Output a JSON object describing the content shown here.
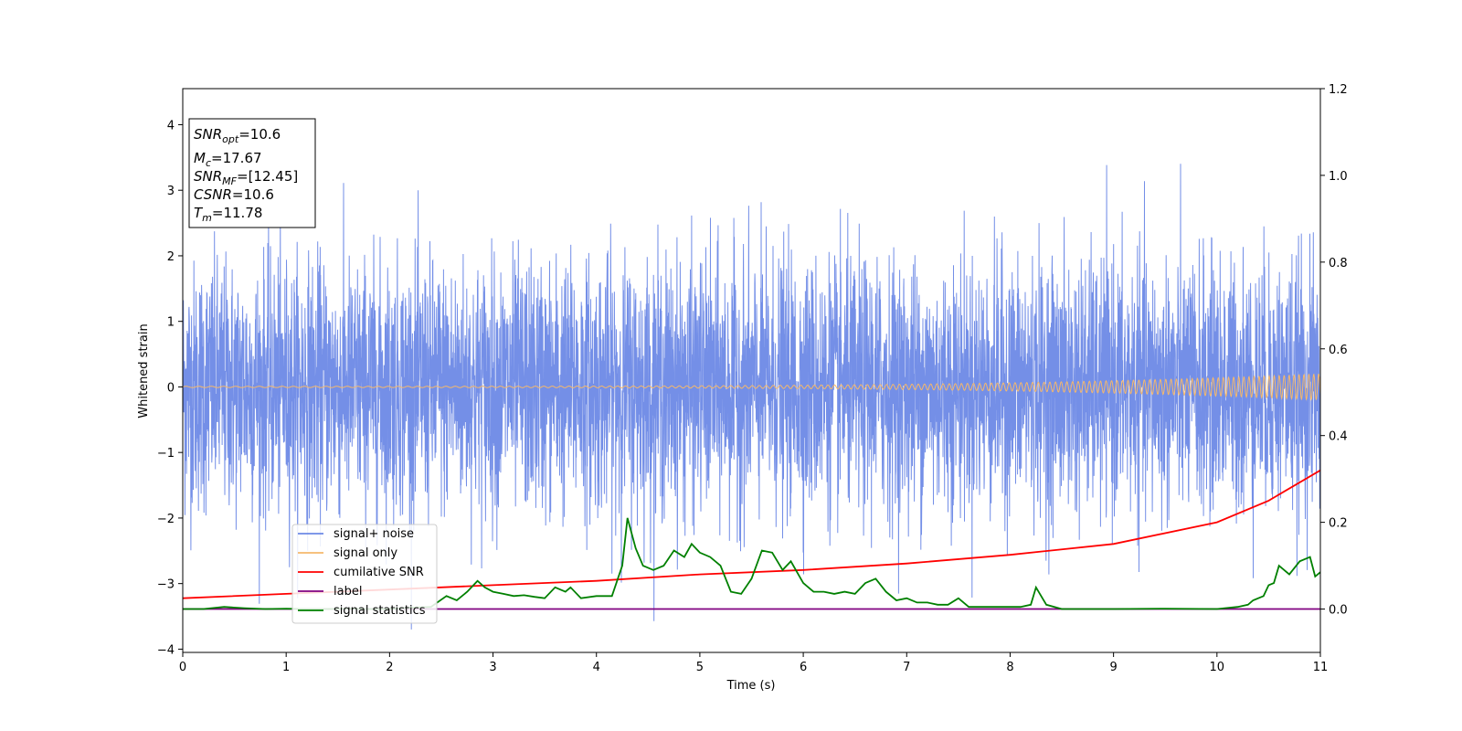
{
  "chart_data": {
    "type": "line",
    "xlabel": "Time (s)",
    "ylabel": "Whitened strain",
    "xlim": [
      0,
      11
    ],
    "ylim": [
      -4.05,
      4.55
    ],
    "y2lim": [
      -0.1,
      1.2
    ],
    "x_ticks": [
      "0",
      "1",
      "2",
      "3",
      "4",
      "5",
      "6",
      "7",
      "8",
      "9",
      "10",
      "11"
    ],
    "y_ticks": [
      "−4",
      "−3",
      "−2",
      "−1",
      "0",
      "1",
      "2",
      "3",
      "4"
    ],
    "y2_ticks": [
      "0.0",
      "0.2",
      "0.4",
      "0.6",
      "0.8",
      "1.0",
      "1.2"
    ],
    "grid": false,
    "legend_position": "lower-left",
    "info_box": {
      "snr_opt": {
        "main": "SNR",
        "sub": "opt",
        "value": "=10.6"
      },
      "mc": {
        "main": "M",
        "sub": "c",
        "value": "=17.67"
      },
      "snr_mf": {
        "main": "SNR",
        "sub": "MF",
        "value": "=[12.45]"
      },
      "csnr": {
        "main": "CSNR",
        "value": "=10.6"
      },
      "tm": {
        "main": "T",
        "sub": "m",
        "value": "=11.78"
      }
    },
    "series": [
      {
        "name": "signal+ noise",
        "color": "#6d89e6",
        "axis": "left",
        "description": "whitened noisy strain, approx. gaussian with std 1, extremes",
        "y_range": [
          -3.7,
          4.15
        ]
      },
      {
        "name": "signal only",
        "color": "#f5b86b",
        "axis": "left",
        "amplitude_start": 0.01,
        "amplitude_end": 0.2,
        "y_center": 0
      },
      {
        "name": "cumilative SNR",
        "color": "#ff0000",
        "axis": "right",
        "x": [
          0,
          1,
          2,
          3,
          4,
          5,
          6,
          7,
          8,
          9,
          10,
          10.5,
          11
        ],
        "y": [
          0.025,
          0.035,
          0.045,
          0.055,
          0.065,
          0.08,
          0.09,
          0.105,
          0.125,
          0.15,
          0.2,
          0.25,
          0.32
        ]
      },
      {
        "name": "label",
        "color": "#800080",
        "axis": "right",
        "x": [
          0,
          11
        ],
        "y": [
          0.0,
          0.0
        ]
      },
      {
        "name": "signal statistics",
        "color": "#008000",
        "axis": "right",
        "x": [
          0,
          0.2,
          0.4,
          0.6,
          0.8,
          1.0,
          1.2,
          1.4,
          1.6,
          1.8,
          2.0,
          2.2,
          2.4,
          2.55,
          2.65,
          2.75,
          2.85,
          2.92,
          3.0,
          3.1,
          3.2,
          3.3,
          3.4,
          3.5,
          3.6,
          3.7,
          3.75,
          3.85,
          4.0,
          4.15,
          4.25,
          4.3,
          4.38,
          4.45,
          4.55,
          4.65,
          4.75,
          4.85,
          4.92,
          5.0,
          5.1,
          5.2,
          5.3,
          5.4,
          5.5,
          5.6,
          5.7,
          5.8,
          5.88,
          6.0,
          6.1,
          6.2,
          6.3,
          6.4,
          6.5,
          6.6,
          6.7,
          6.8,
          6.9,
          7.0,
          7.1,
          7.2,
          7.3,
          7.4,
          7.5,
          7.6,
          7.7,
          7.9,
          8.1,
          8.2,
          8.25,
          8.35,
          8.5,
          8.7,
          9.0,
          9.5,
          10.0,
          10.2,
          10.3,
          10.35,
          10.45,
          10.5,
          10.55,
          10.6,
          10.7,
          10.8,
          10.9,
          10.95,
          11.0
        ],
        "y": [
          0.0,
          0.0,
          0.005,
          0.002,
          0.0,
          0.001,
          0.0,
          0.0,
          0.001,
          0.0,
          0.0,
          0.003,
          0.005,
          0.03,
          0.02,
          0.04,
          0.065,
          0.05,
          0.04,
          0.035,
          0.03,
          0.032,
          0.028,
          0.025,
          0.05,
          0.04,
          0.05,
          0.025,
          0.03,
          0.03,
          0.1,
          0.21,
          0.14,
          0.1,
          0.09,
          0.1,
          0.135,
          0.12,
          0.15,
          0.13,
          0.12,
          0.1,
          0.04,
          0.035,
          0.07,
          0.135,
          0.13,
          0.09,
          0.11,
          0.06,
          0.04,
          0.04,
          0.035,
          0.04,
          0.035,
          0.06,
          0.07,
          0.04,
          0.02,
          0.025,
          0.015,
          0.015,
          0.01,
          0.01,
          0.025,
          0.005,
          0.005,
          0.005,
          0.005,
          0.01,
          0.05,
          0.01,
          0.0,
          0.0,
          0.0,
          0.001,
          0.0,
          0.005,
          0.01,
          0.02,
          0.03,
          0.055,
          0.06,
          0.1,
          0.08,
          0.11,
          0.12,
          0.075,
          0.085
        ]
      }
    ]
  }
}
